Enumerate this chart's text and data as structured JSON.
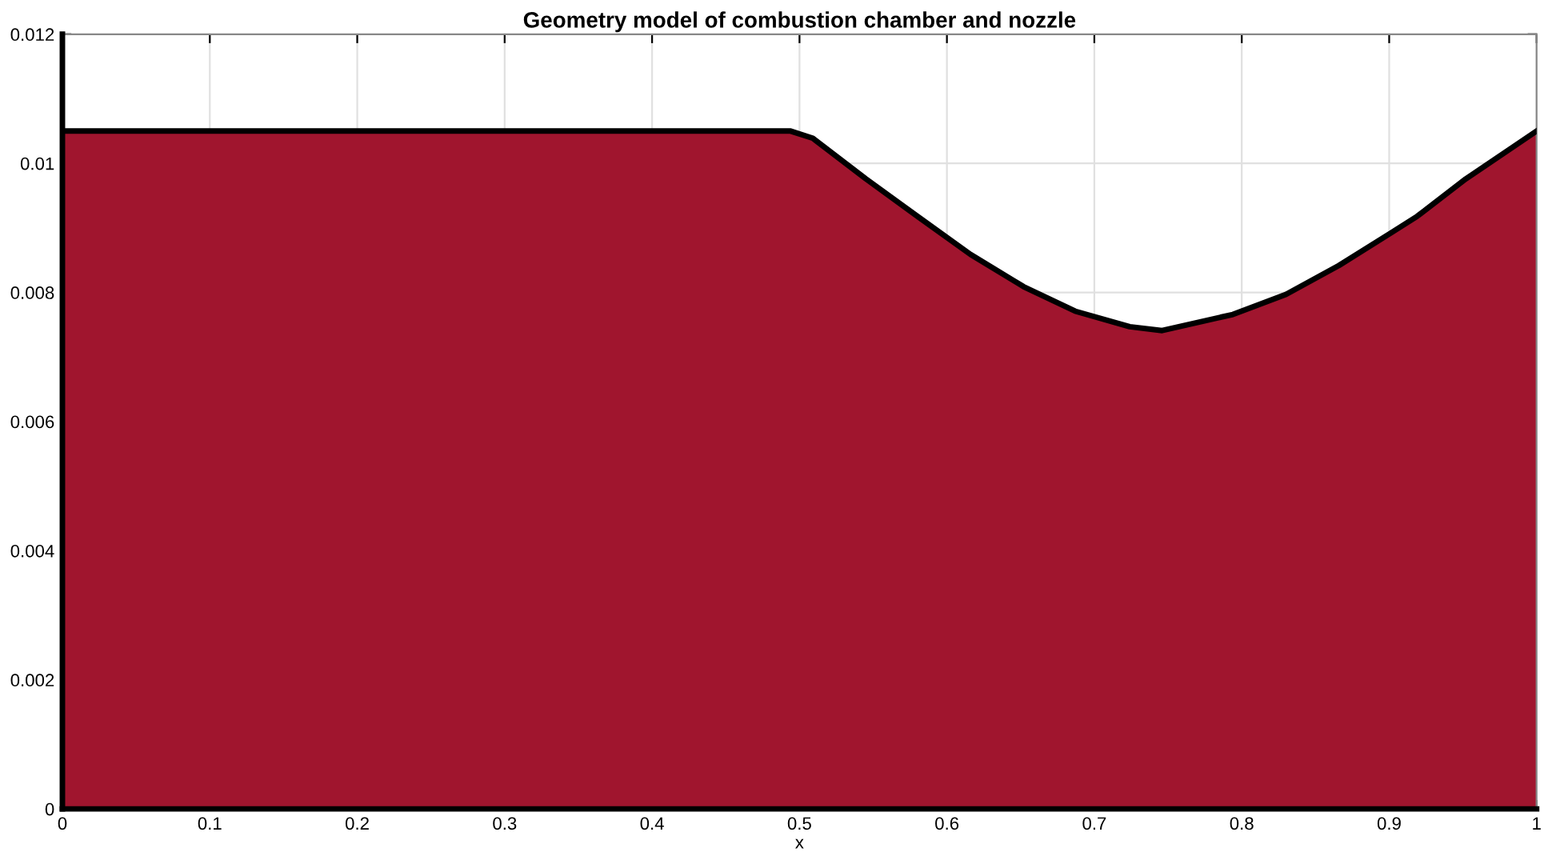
{
  "chart_data": {
    "type": "area",
    "title": "Geometry model of combustion chamber and nozzle",
    "xlabel": "x",
    "x": [
      0,
      0.494,
      0.509,
      0.545,
      0.58,
      0.616,
      0.652,
      0.687,
      0.724,
      0.746,
      0.794,
      0.83,
      0.866,
      0.901,
      0.919,
      0.952,
      1
    ],
    "series": [
      {
        "color": "#a0152e",
        "values": [
          0.0105,
          0.0105,
          0.01039,
          0.00976,
          0.00918,
          0.00859,
          0.00809,
          0.00771,
          0.00747,
          0.00741,
          0.00766,
          0.00797,
          0.00842,
          0.00892,
          0.00918,
          0.00976,
          0.0105
        ]
      }
    ],
    "xlim": [
      0,
      1
    ],
    "ylim": [
      0,
      0.012
    ],
    "xticks": [
      0,
      0.1,
      0.2,
      0.3,
      0.4,
      0.5,
      0.6,
      0.7,
      0.8,
      0.9,
      1
    ],
    "yticks": [
      0,
      0.002,
      0.004,
      0.006,
      0.008,
      0.01,
      0.012
    ],
    "grid": true
  }
}
